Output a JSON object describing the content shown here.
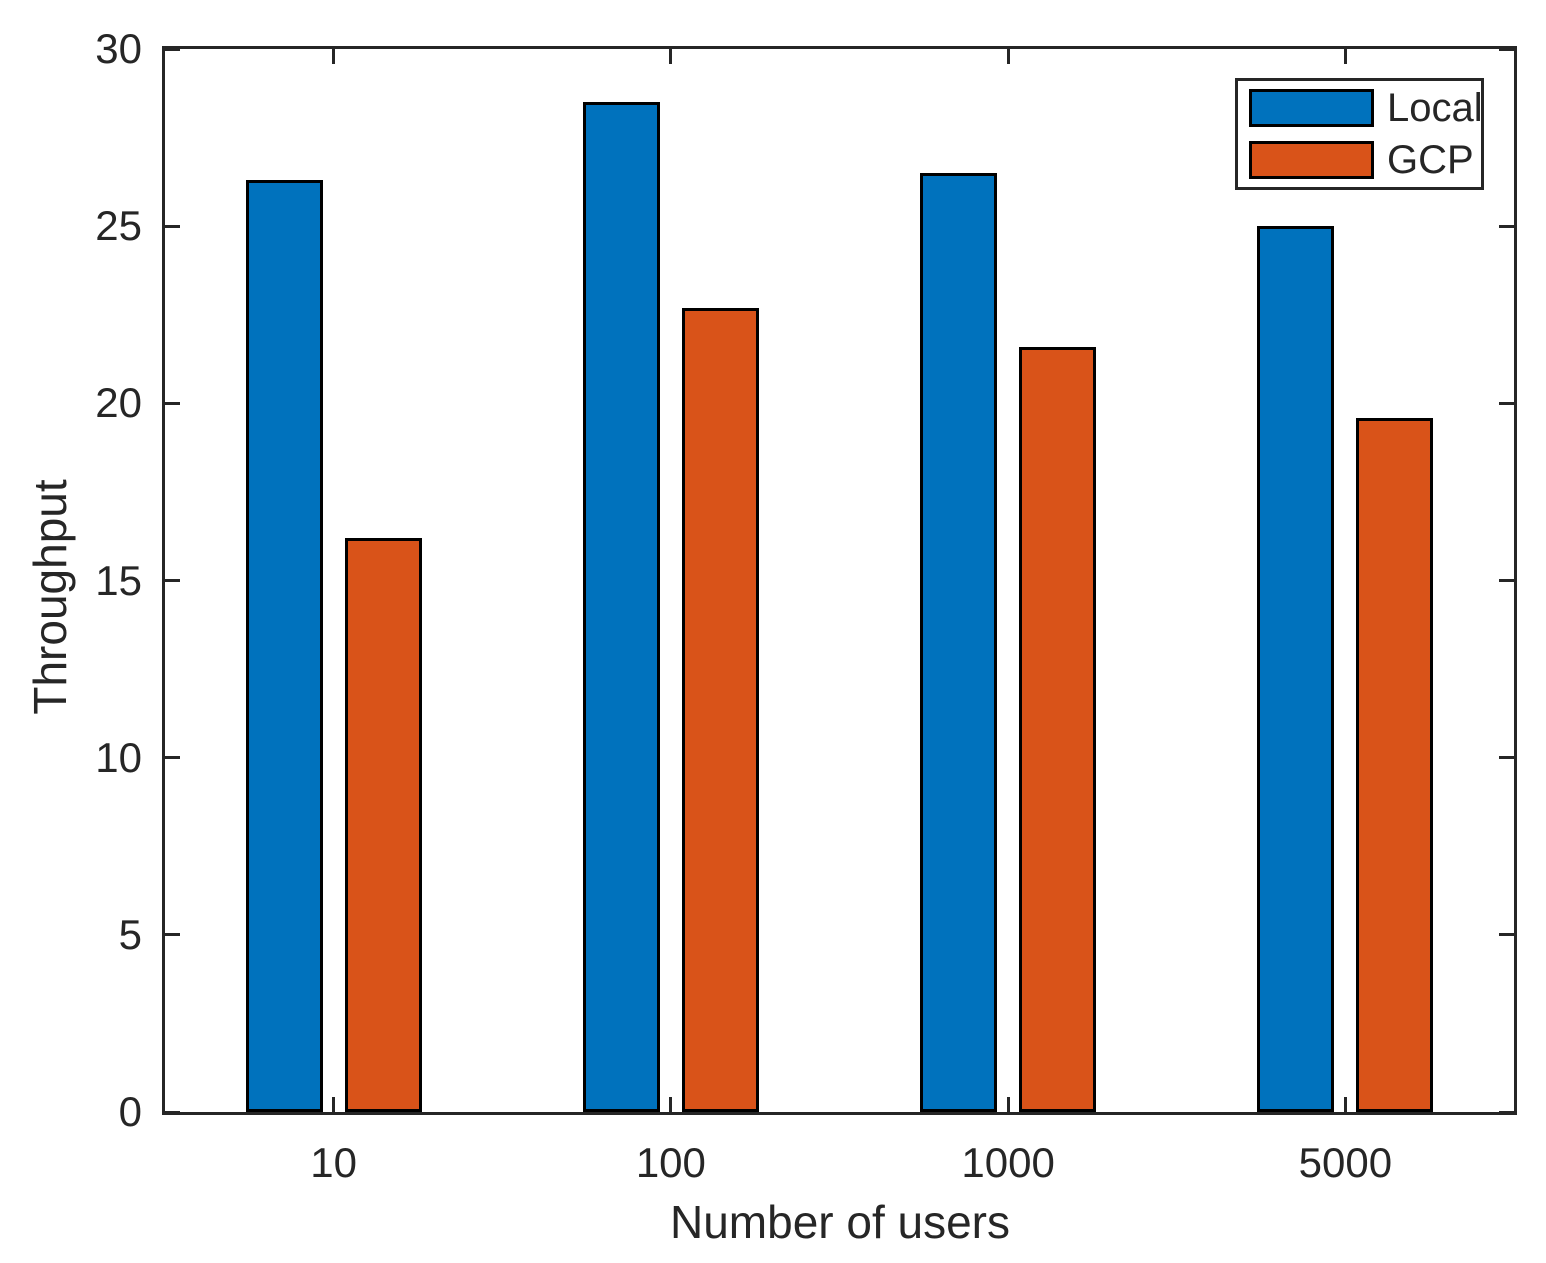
{
  "figure": {
    "background": "#ffffff",
    "text_color": "#262626",
    "axis_color": "#262626"
  },
  "chart_data": {
    "type": "bar",
    "title": "",
    "xlabel": "Number of users",
    "ylabel": "Throughput",
    "categories": [
      "10",
      "100",
      "1000",
      "5000"
    ],
    "series": [
      {
        "name": "Local",
        "color": "#0072BD",
        "values": [
          26.3,
          28.5,
          26.5,
          25.0
        ]
      },
      {
        "name": "GCP",
        "color": "#D95319",
        "values": [
          16.2,
          22.7,
          21.6,
          19.6
        ]
      }
    ],
    "ylim": [
      0,
      30
    ],
    "yticks": [
      0,
      5,
      10,
      15,
      20,
      25,
      30
    ],
    "grid": false,
    "legend_position": "northeast",
    "bar_edge_color": "#000000",
    "legend_labels": [
      "Local",
      "GCP"
    ]
  }
}
